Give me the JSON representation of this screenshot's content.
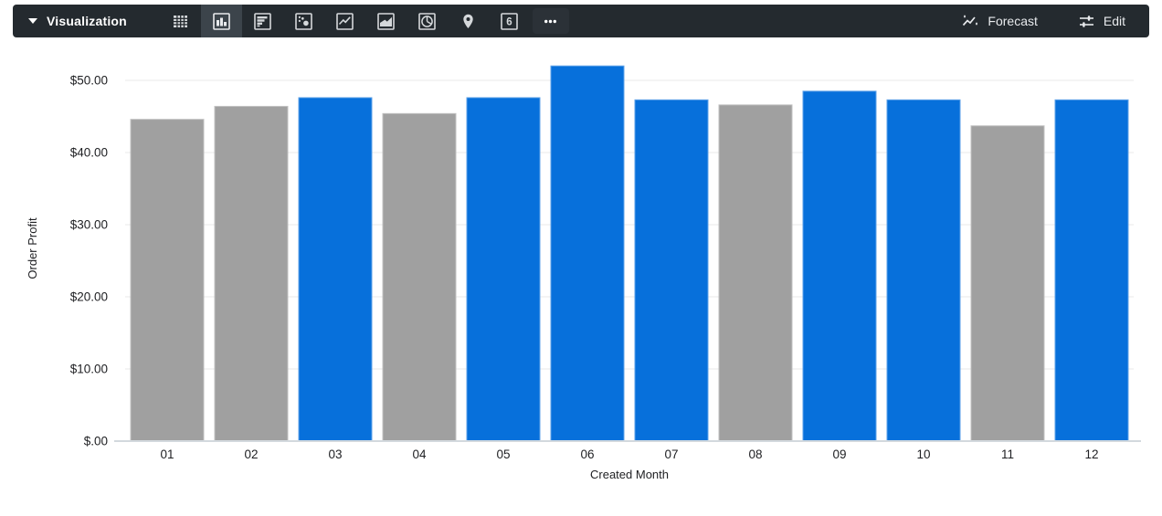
{
  "toolbar": {
    "label": "Visualization",
    "bg_color": "#242A2F",
    "selected_bg_color": "#3C444B",
    "viz_icons": [
      "table-icon",
      "column-chart-icon",
      "bar-chart-icon",
      "scatter-icon",
      "line-chart-icon",
      "area-chart-icon",
      "pie-chart-icon",
      "map-pin-icon",
      "single-value-icon",
      "ellipsis-icon"
    ],
    "selected_viz": "column-chart-icon",
    "single_value_text": "6",
    "forecast": {
      "label": "Forecast"
    },
    "edit": {
      "label": "Edit"
    }
  },
  "chart_data": {
    "type": "bar",
    "title": "",
    "xlabel": "Created Month",
    "ylabel": "Order Profit",
    "categories": [
      "01",
      "02",
      "03",
      "04",
      "05",
      "06",
      "07",
      "08",
      "09",
      "10",
      "11",
      "12"
    ],
    "values": [
      44.6,
      46.4,
      47.6,
      45.4,
      47.6,
      52.0,
      47.3,
      46.6,
      48.5,
      47.3,
      43.7,
      47.3
    ],
    "colors": [
      "#A0A0A0",
      "#A0A0A0",
      "#0770DB",
      "#A0A0A0",
      "#0770DB",
      "#0770DB",
      "#0770DB",
      "#A0A0A0",
      "#0770DB",
      "#0770DB",
      "#A0A0A0",
      "#0770DB"
    ],
    "palette": {
      "highlight": "#0770DB",
      "base": "#A0A0A0"
    },
    "y_ticks": [
      {
        "value": 0,
        "label": "$.00"
      },
      {
        "value": 10,
        "label": "$10.00"
      },
      {
        "value": 20,
        "label": "$20.00"
      },
      {
        "value": 30,
        "label": "$30.00"
      },
      {
        "value": 40,
        "label": "$40.00"
      },
      {
        "value": 50,
        "label": "$50.00"
      }
    ],
    "ylim": [
      0,
      55
    ],
    "grid": true,
    "legend": false
  }
}
